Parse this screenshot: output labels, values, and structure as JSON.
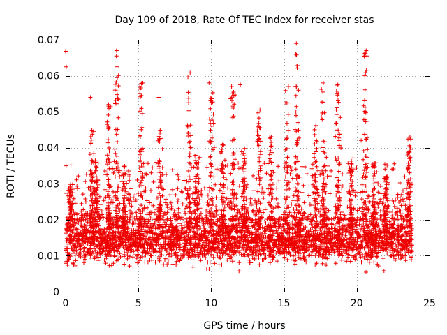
{
  "chart_data": {
    "type": "scatter",
    "title": "Day 109 of 2018, Rate Of TEC Index for receiver stas",
    "xlabel": "GPS time / hours",
    "ylabel": "ROTI / TECUs",
    "xlim": [
      0,
      25
    ],
    "ylim": [
      0,
      0.07
    ],
    "xticks": [
      0,
      5,
      10,
      15,
      20,
      25
    ],
    "xtick_labels": [
      "0",
      "5",
      "10",
      "15",
      "20",
      "25"
    ],
    "yticks": [
      0,
      0.01,
      0.02,
      0.03,
      0.04,
      0.05,
      0.06,
      0.07
    ],
    "ytick_labels": [
      "0",
      "0.01",
      "0.02",
      "0.03",
      "0.04",
      "0.05",
      "0.06",
      "0.07"
    ],
    "grid": true,
    "marker": "+",
    "marker_color": "#ee0000",
    "x_data_range": [
      0,
      23.8
    ],
    "baseline_band": [
      0.006,
      0.022
    ],
    "notable_points": [
      {
        "x": 0.0,
        "y": 0.0668
      },
      {
        "x": 0.05,
        "y": 0.0625
      },
      {
        "x": 1.7,
        "y": 0.054
      },
      {
        "x": 3.5,
        "y": 0.067
      },
      {
        "x": 3.55,
        "y": 0.0595
      },
      {
        "x": 2.95,
        "y": 0.052
      },
      {
        "x": 5.3,
        "y": 0.058
      },
      {
        "x": 5.2,
        "y": 0.0545
      },
      {
        "x": 6.4,
        "y": 0.054
      },
      {
        "x": 8.55,
        "y": 0.0608
      },
      {
        "x": 8.45,
        "y": 0.0525
      },
      {
        "x": 9.85,
        "y": 0.058
      },
      {
        "x": 10.0,
        "y": 0.0525
      },
      {
        "x": 11.4,
        "y": 0.057
      },
      {
        "x": 12.0,
        "y": 0.0575
      },
      {
        "x": 13.35,
        "y": 0.0505
      },
      {
        "x": 15.3,
        "y": 0.057
      },
      {
        "x": 15.2,
        "y": 0.0525
      },
      {
        "x": 15.85,
        "y": 0.069
      },
      {
        "x": 16.0,
        "y": 0.056
      },
      {
        "x": 17.7,
        "y": 0.058
      },
      {
        "x": 18.7,
        "y": 0.0575
      },
      {
        "x": 18.75,
        "y": 0.055
      },
      {
        "x": 18.6,
        "y": 0.0505
      },
      {
        "x": 20.65,
        "y": 0.067
      },
      {
        "x": 20.7,
        "y": 0.0655
      },
      {
        "x": 20.55,
        "y": 0.06
      },
      {
        "x": 20.5,
        "y": 0.05
      },
      {
        "x": 20.3,
        "y": 0.042
      },
      {
        "x": 23.65,
        "y": 0.043
      },
      {
        "x": 23.5,
        "y": 0.038
      }
    ],
    "spike_clusters": [
      {
        "x": 0.3,
        "peak": 0.03
      },
      {
        "x": 1.8,
        "peak": 0.045
      },
      {
        "x": 2.1,
        "peak": 0.038
      },
      {
        "x": 2.95,
        "peak": 0.052
      },
      {
        "x": 3.5,
        "peak": 0.067
      },
      {
        "x": 4.0,
        "peak": 0.035
      },
      {
        "x": 5.2,
        "peak": 0.058
      },
      {
        "x": 6.5,
        "peak": 0.045
      },
      {
        "x": 8.5,
        "peak": 0.061
      },
      {
        "x": 9.0,
        "peak": 0.038
      },
      {
        "x": 10.0,
        "peak": 0.058
      },
      {
        "x": 10.8,
        "peak": 0.042
      },
      {
        "x": 11.5,
        "peak": 0.057
      },
      {
        "x": 12.3,
        "peak": 0.04
      },
      {
        "x": 13.3,
        "peak": 0.05
      },
      {
        "x": 14.1,
        "peak": 0.044
      },
      {
        "x": 15.2,
        "peak": 0.057
      },
      {
        "x": 15.9,
        "peak": 0.069
      },
      {
        "x": 17.2,
        "peak": 0.047
      },
      {
        "x": 17.7,
        "peak": 0.058
      },
      {
        "x": 18.7,
        "peak": 0.058
      },
      {
        "x": 19.6,
        "peak": 0.038
      },
      {
        "x": 20.6,
        "peak": 0.067
      },
      {
        "x": 21.2,
        "peak": 0.036
      },
      {
        "x": 22.0,
        "peak": 0.036
      },
      {
        "x": 23.6,
        "peak": 0.043
      }
    ]
  }
}
